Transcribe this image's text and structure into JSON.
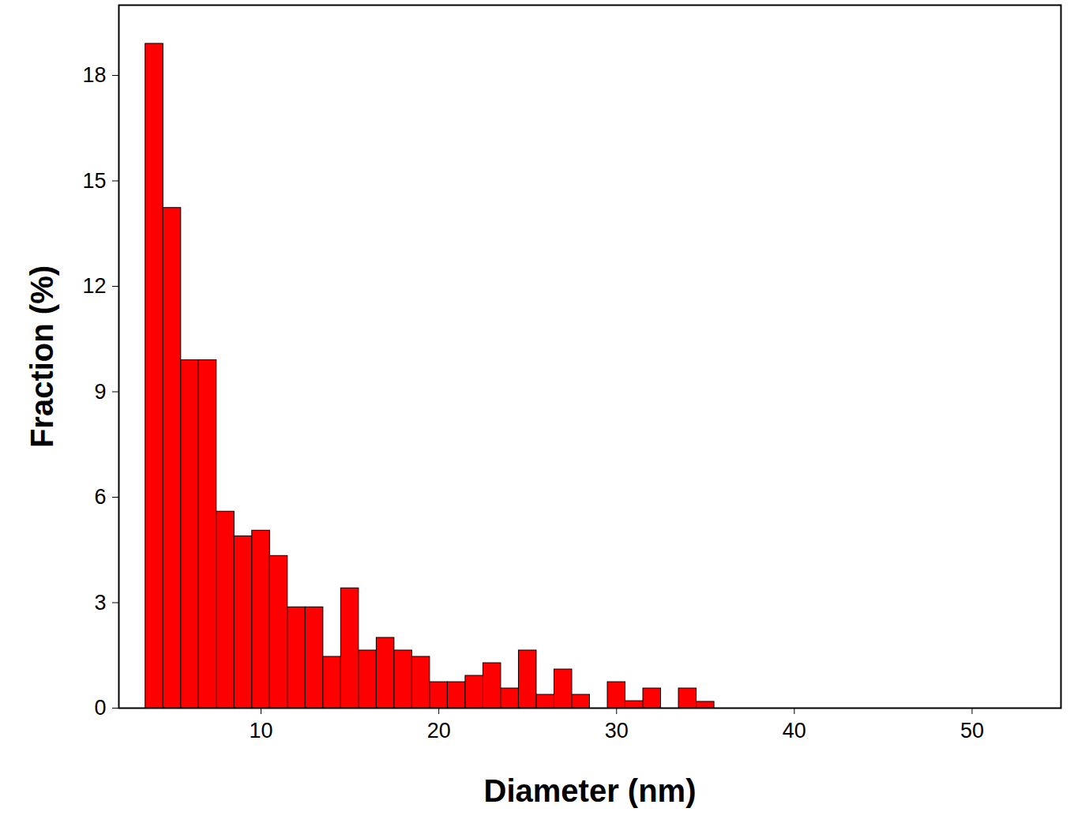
{
  "chart_data": {
    "type": "histogram",
    "x_label": "Diameter (nm)",
    "y_label": "Fraction (%)",
    "bins": [
      3.5,
      4.5,
      5.5,
      6.5,
      7.5,
      8.5,
      9.5,
      10.5,
      11.5,
      12.5,
      13.5,
      14.5,
      15.5,
      16.5,
      17.5,
      18.5,
      19.5,
      20.5,
      21.5,
      22.5,
      23.5,
      24.5,
      25.5,
      26.5,
      27.5,
      28.5,
      29.5,
      30.5,
      31.5,
      32.5,
      33.5,
      34.5,
      35.5
    ],
    "values": [
      18.9,
      14.23,
      9.9,
      9.9,
      5.59,
      4.89,
      5.05,
      4.33,
      2.87,
      2.87,
      1.46,
      3.41,
      1.64,
      2.0,
      1.64,
      1.46,
      0.74,
      0.74,
      0.92,
      1.28,
      0.56,
      1.64,
      0.38,
      1.1,
      0.38,
      0,
      0.74,
      0.2,
      0.56,
      0,
      0.56,
      0.18
    ],
    "color": "#ff0000",
    "xlim": [
      2,
      55
    ],
    "xticks": [
      10,
      20,
      30,
      40,
      50
    ],
    "ylim": [
      0,
      20
    ],
    "yticks": [
      0,
      3,
      6,
      9,
      12,
      15,
      18
    ],
    "grid": false
  }
}
